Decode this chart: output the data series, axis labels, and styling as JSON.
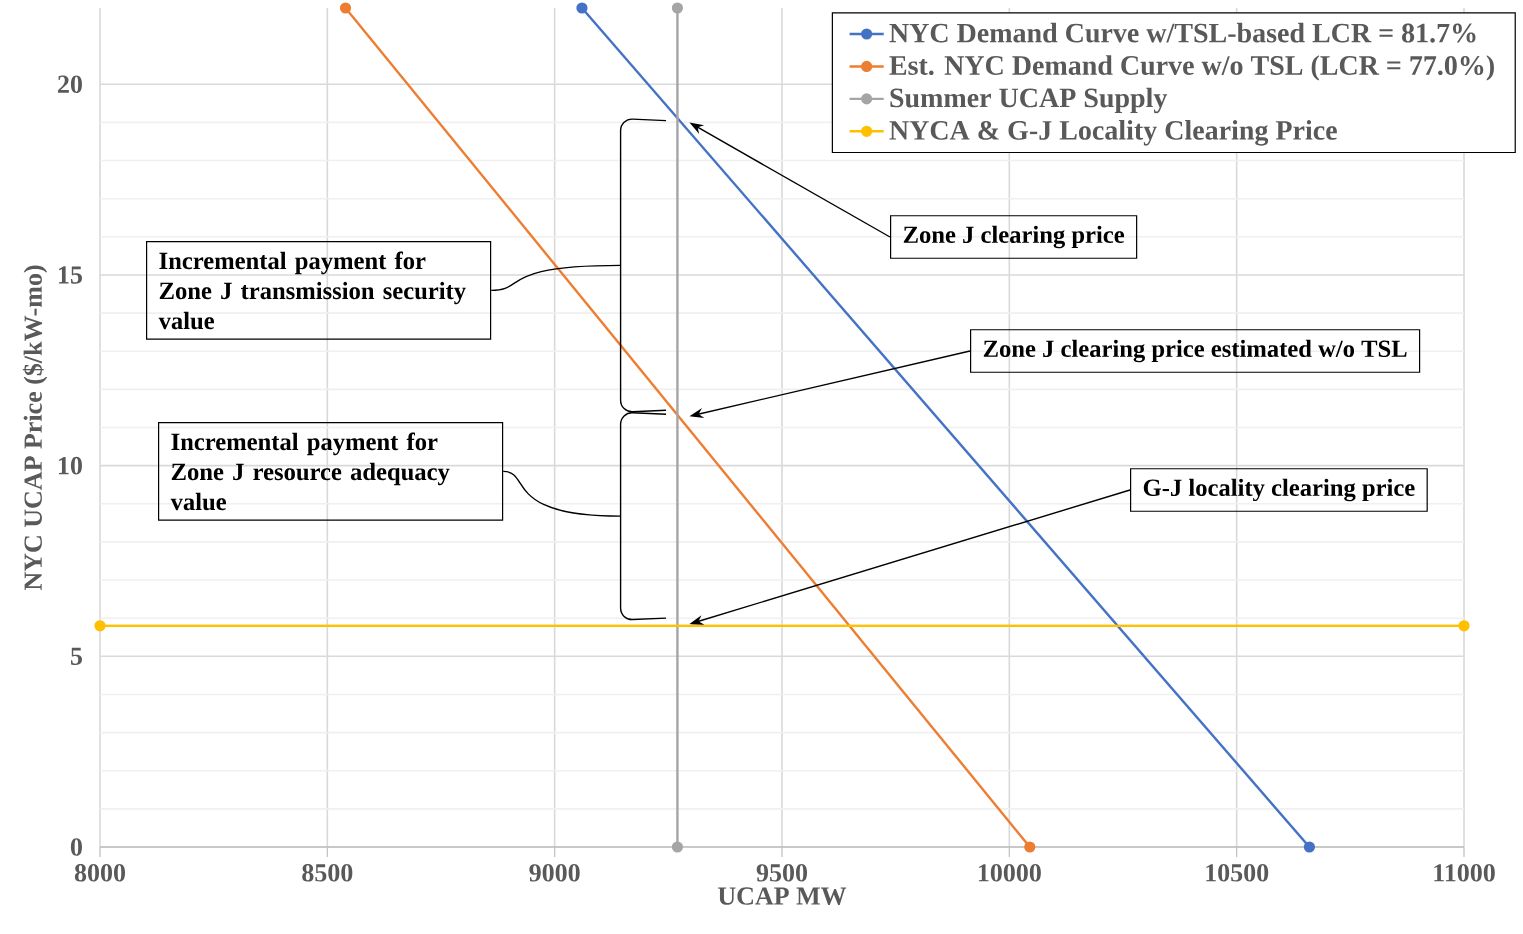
{
  "chart_data": {
    "type": "line",
    "xlabel": "UCAP MW",
    "ylabel": "NYC UCAP Price ($/kW-mo)",
    "xlim": [
      8000,
      11000
    ],
    "ylim": [
      0,
      22
    ],
    "xticks": [
      8000,
      8500,
      9000,
      9500,
      10000,
      10500,
      11000
    ],
    "yticks": [
      0,
      5,
      10,
      15,
      20
    ],
    "grid": true,
    "legend": "top right",
    "marker": "circle",
    "series": [
      {
        "name": "NYC Demand Curve w/TSL-based LCR = 81.7%",
        "color": "#4472c4",
        "x": [
          9060,
          10660
        ],
        "values": [
          22,
          0
        ]
      },
      {
        "name": "Est. NYC Demand Curve w/o TSL (LCR = 77.0%)",
        "color": "#ed7d31",
        "x": [
          8540,
          10045
        ],
        "values": [
          22,
          0
        ]
      },
      {
        "name": "Summer UCAP Supply",
        "color": "#a5a5a5",
        "x": [
          9270,
          9270
        ],
        "values": [
          0,
          22
        ]
      },
      {
        "name": "NYCA & G-J Locality Clearing Price",
        "color": "#ffc000",
        "x": [
          8000,
          11000
        ],
        "values": [
          5.8,
          5.8
        ]
      }
    ],
    "annotations": [
      "Zone J clearing price",
      "Zone J clearing price estimated w/o TSL",
      "G-J locality clearing price",
      "Incremental payment for Zone J transmission security value",
      "Incremental payment for Zone J resource adequacy value"
    ]
  }
}
